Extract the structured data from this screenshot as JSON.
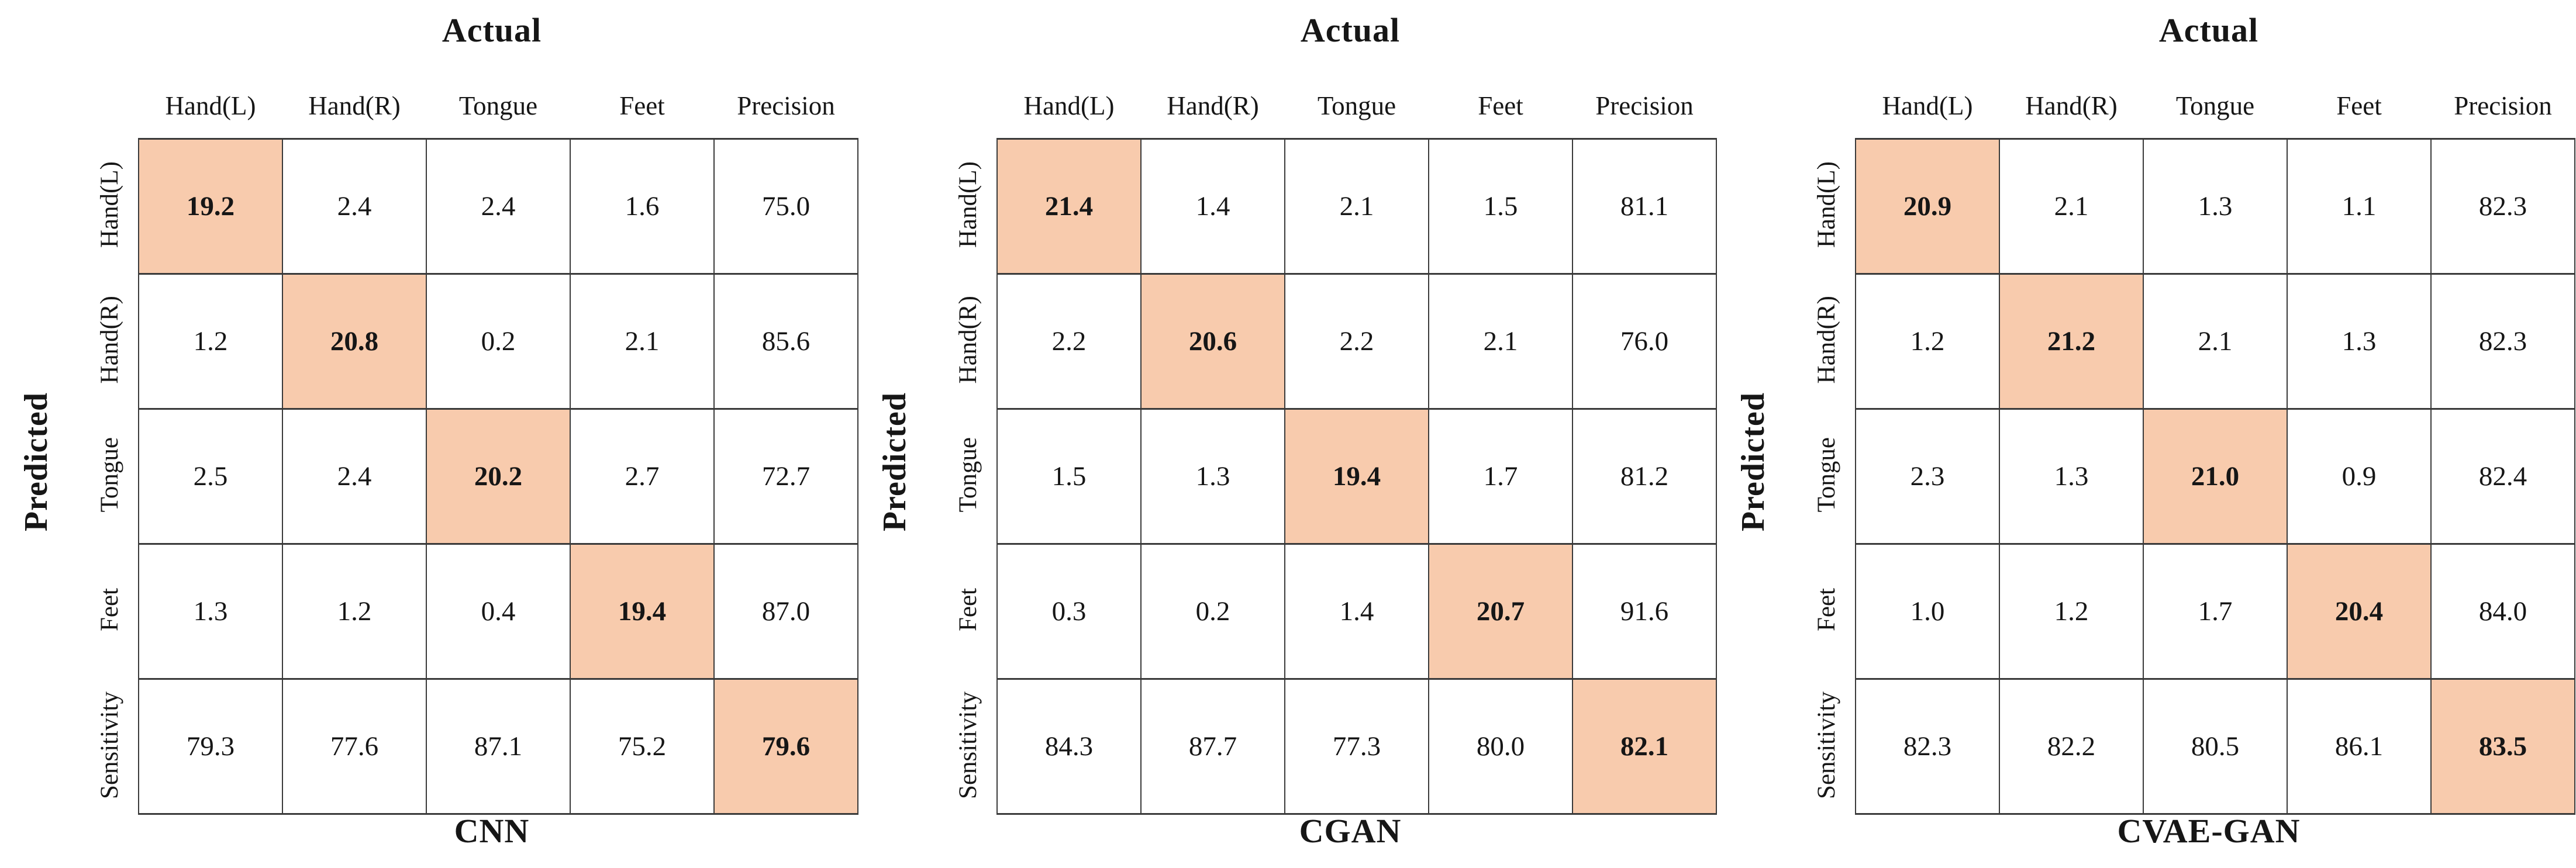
{
  "figure": {
    "axis_top_label": "Actual",
    "axis_left_label": "Predicted",
    "column_headers": [
      "Hand(L)",
      "Hand(R)",
      "Tongue",
      "Feet",
      "Precision"
    ],
    "row_headers": [
      "Hand(L)",
      "Hand(R)",
      "Tongue",
      "Feet",
      "Sensitivity"
    ],
    "colors": {
      "diagonal_highlight": "#F8CBAD",
      "grid_line": "#3A3A3A",
      "text": "#161616",
      "background": "#FFFFFF"
    }
  },
  "matrices": [
    {
      "name": "CNN",
      "values": [
        [
          "19.2",
          "2.4",
          "2.4",
          "1.6",
          "75.0"
        ],
        [
          "1.2",
          "20.8",
          "0.2",
          "2.1",
          "85.6"
        ],
        [
          "2.5",
          "2.4",
          "20.2",
          "2.7",
          "72.7"
        ],
        [
          "1.3",
          "1.2",
          "0.4",
          "19.4",
          "87.0"
        ],
        [
          "79.3",
          "77.6",
          "87.1",
          "75.2",
          "79.6"
        ]
      ]
    },
    {
      "name": "CGAN",
      "values": [
        [
          "21.4",
          "1.4",
          "2.1",
          "1.5",
          "81.1"
        ],
        [
          "2.2",
          "20.6",
          "2.2",
          "2.1",
          "76.0"
        ],
        [
          "1.5",
          "1.3",
          "19.4",
          "1.7",
          "81.2"
        ],
        [
          "0.3",
          "0.2",
          "1.4",
          "20.7",
          "91.6"
        ],
        [
          "84.3",
          "87.7",
          "77.3",
          "80.0",
          "82.1"
        ]
      ]
    },
    {
      "name": "CVAE-GAN",
      "values": [
        [
          "20.9",
          "2.1",
          "1.3",
          "1.1",
          "82.3"
        ],
        [
          "1.2",
          "21.2",
          "2.1",
          "1.3",
          "82.3"
        ],
        [
          "2.3",
          "1.3",
          "21.0",
          "0.9",
          "82.4"
        ],
        [
          "1.0",
          "1.2",
          "1.7",
          "20.4",
          "84.0"
        ],
        [
          "82.3",
          "82.2",
          "80.5",
          "86.1",
          "83.5"
        ]
      ]
    }
  ],
  "chart_data": [
    {
      "type": "heatmap",
      "title": "CNN",
      "xlabel": "Actual",
      "ylabel": "Predicted",
      "x_categories": [
        "Hand(L)",
        "Hand(R)",
        "Tongue",
        "Feet",
        "Precision"
      ],
      "y_categories": [
        "Hand(L)",
        "Hand(R)",
        "Tongue",
        "Feet",
        "Sensitivity"
      ],
      "values": [
        [
          19.2,
          2.4,
          2.4,
          1.6,
          75.0
        ],
        [
          1.2,
          20.8,
          0.2,
          2.1,
          85.6
        ],
        [
          2.5,
          2.4,
          20.2,
          2.7,
          72.7
        ],
        [
          1.3,
          1.2,
          0.4,
          19.4,
          87.0
        ],
        [
          79.3,
          77.6,
          87.1,
          75.2,
          79.6
        ]
      ],
      "highlighted_cells": "main-diagonal",
      "highlight_color": "#F8CBAD",
      "grid": true,
      "legend": false
    },
    {
      "type": "heatmap",
      "title": "CGAN",
      "xlabel": "Actual",
      "ylabel": "Predicted",
      "x_categories": [
        "Hand(L)",
        "Hand(R)",
        "Tongue",
        "Feet",
        "Precision"
      ],
      "y_categories": [
        "Hand(L)",
        "Hand(R)",
        "Tongue",
        "Feet",
        "Sensitivity"
      ],
      "values": [
        [
          21.4,
          1.4,
          2.1,
          1.5,
          81.1
        ],
        [
          2.2,
          20.6,
          2.2,
          2.1,
          76.0
        ],
        [
          1.5,
          1.3,
          19.4,
          1.7,
          81.2
        ],
        [
          0.3,
          0.2,
          1.4,
          20.7,
          91.6
        ],
        [
          84.3,
          87.7,
          77.3,
          80.0,
          82.1
        ]
      ],
      "highlighted_cells": "main-diagonal",
      "highlight_color": "#F8CBAD",
      "grid": true,
      "legend": false
    },
    {
      "type": "heatmap",
      "title": "CVAE-GAN",
      "xlabel": "Actual",
      "ylabel": "Predicted",
      "x_categories": [
        "Hand(L)",
        "Hand(R)",
        "Tongue",
        "Feet",
        "Precision"
      ],
      "y_categories": [
        "Hand(L)",
        "Hand(R)",
        "Tongue",
        "Feet",
        "Sensitivity"
      ],
      "values": [
        [
          20.9,
          2.1,
          1.3,
          1.1,
          82.3
        ],
        [
          1.2,
          21.2,
          2.1,
          1.3,
          82.3
        ],
        [
          2.3,
          1.3,
          21.0,
          0.9,
          82.4
        ],
        [
          1.0,
          1.2,
          1.7,
          20.4,
          84.0
        ],
        [
          82.3,
          82.2,
          80.5,
          86.1,
          83.5
        ]
      ],
      "highlighted_cells": "main-diagonal",
      "highlight_color": "#F8CBAD",
      "grid": true,
      "legend": false
    }
  ]
}
